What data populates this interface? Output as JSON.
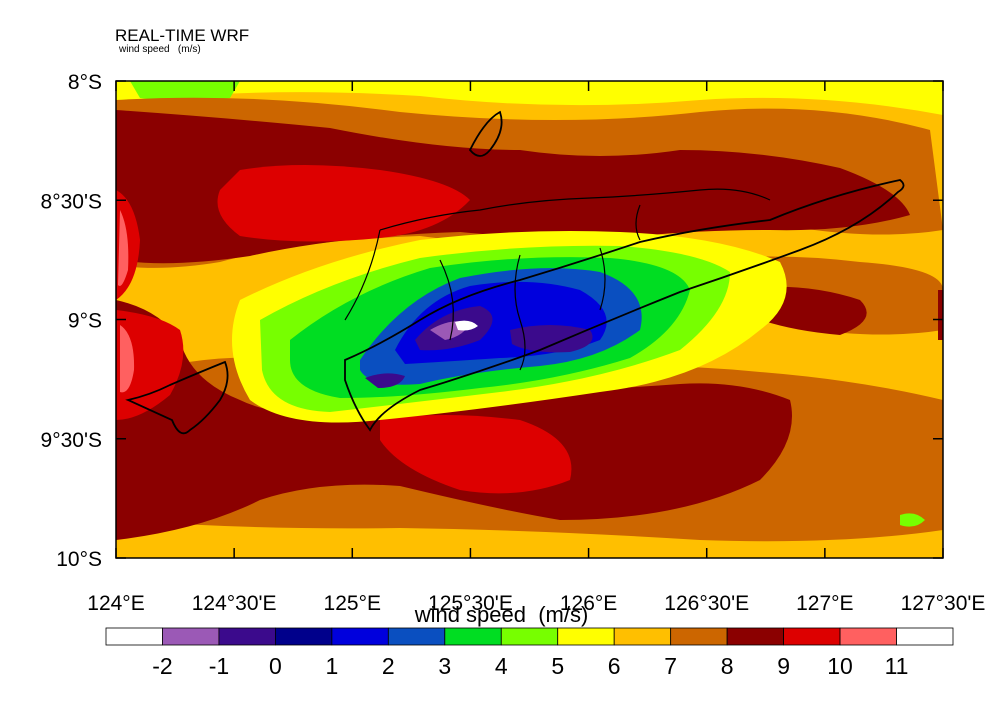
{
  "title": "REAL-TIME WRF",
  "subtitle": "wind speed   (m/s)",
  "x_ticks": [
    "124°E",
    "124°30'E",
    "125°E",
    "125°30'E",
    "126°E",
    "126°30'E",
    "127°E",
    "127°30'E"
  ],
  "y_ticks": [
    "8°S",
    "8°30'S",
    "9°S",
    "9°30'S",
    "10°S"
  ],
  "colorbar": {
    "title": "wind speed  (m/s)",
    "labels": [
      "-2",
      "-1",
      "0",
      "1",
      "2",
      "3",
      "4",
      "5",
      "6",
      "7",
      "8",
      "9",
      "10",
      "11"
    ],
    "colors": [
      "#ffffff",
      "#9b59b6",
      "#3b0a8c",
      "#00008b",
      "#0000dd",
      "#0a4fc0",
      "#00dd22",
      "#77ff00",
      "#ffff00",
      "#ffbf00",
      "#cc6600",
      "#8b0000",
      "#dd0000",
      "#ff6060",
      "#ffffff"
    ]
  },
  "map_data": {
    "lon_range": [
      124,
      127.5
    ],
    "lat_range": [
      -10,
      -8
    ],
    "background_level_color": "#ffbf00"
  }
}
